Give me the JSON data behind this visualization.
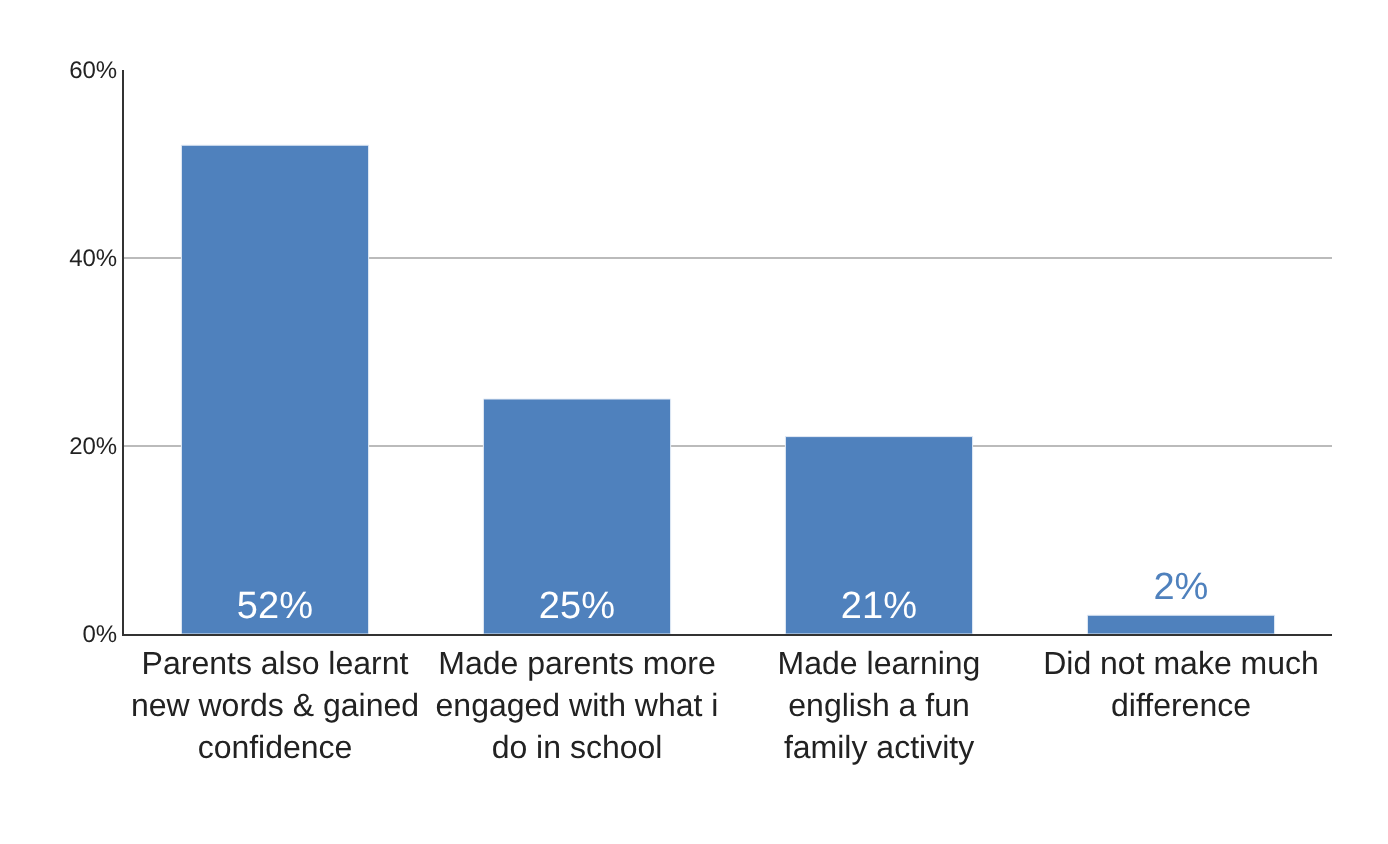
{
  "chart_data": {
    "type": "bar",
    "categories": [
      "Parents also learnt new words & gained confidence",
      "Made parents more engaged with what i do in school",
      "Made learning english a fun family activity",
      "Did not make much difference"
    ],
    "values": [
      52,
      25,
      21,
      2
    ],
    "value_labels": [
      "52%",
      "25%",
      "21%",
      "2%"
    ],
    "color": "#4f81bd",
    "ylim": [
      0,
      60
    ],
    "yticks": [
      {
        "value": 0,
        "label": "0%"
      },
      {
        "value": 20,
        "label": "20%"
      },
      {
        "value": 40,
        "label": "40%"
      },
      {
        "value": 60,
        "label": "60%"
      }
    ],
    "grid": "y"
  }
}
